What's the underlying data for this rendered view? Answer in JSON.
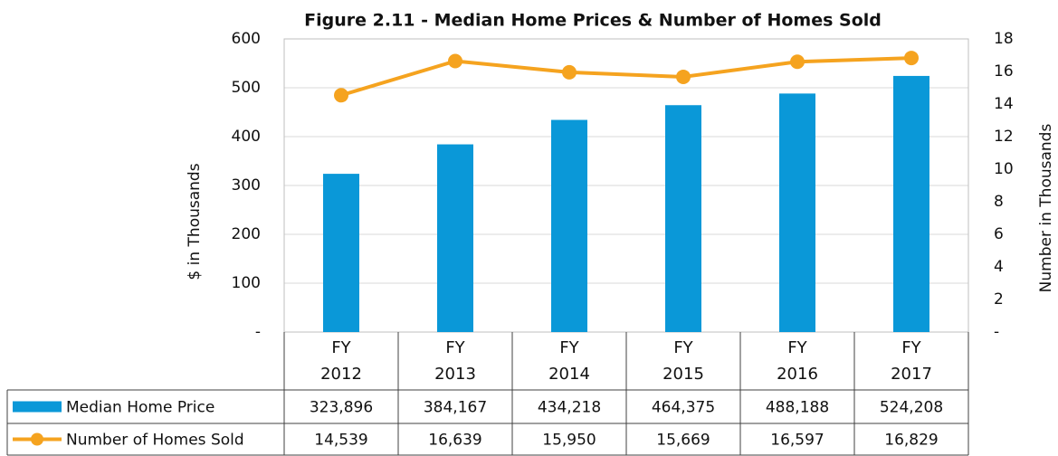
{
  "chart_data": {
    "type": "bar-line",
    "title": "Figure 2.11 - Median Home Prices & Number of Homes Sold",
    "y_label": "$ in Thousands",
    "y2_label": "Number in Thousands",
    "categories": [
      "FY 2012",
      "FY 2013",
      "FY 2014",
      "FY 2015",
      "FY 2016",
      "FY 2017"
    ],
    "series": [
      {
        "name": "Median Home Price",
        "type": "bar",
        "color": "#0a98d8",
        "values": [
          323.896,
          384.167,
          434.218,
          464.375,
          488.188,
          524.208
        ],
        "value_labels": [
          "323,896",
          "384,167",
          "434,218",
          "464,375",
          "488,188",
          "524,208"
        ]
      },
      {
        "name": "Number of Homes Sold",
        "type": "line",
        "axis": "y2",
        "color": "#f5a31f",
        "values": [
          14.539,
          16.639,
          15.95,
          15.669,
          16.597,
          16.829
        ],
        "value_labels": [
          "14,539",
          "16,639",
          "15,950",
          "15,669",
          "16,597",
          "16,829"
        ]
      }
    ],
    "ylim": [
      0,
      600
    ],
    "yticks": [
      {
        "value": 0,
        "label": "-"
      },
      100,
      200,
      300,
      400,
      500,
      600
    ],
    "y2lim": [
      0,
      18
    ],
    "y2ticks": [
      {
        "value": 0,
        "label": "-"
      },
      2,
      4,
      6,
      8,
      10,
      12,
      14,
      16,
      18
    ],
    "grid": true
  }
}
